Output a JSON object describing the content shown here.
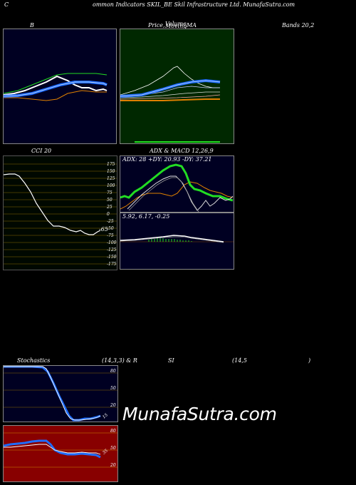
{
  "header": {
    "c_letter": "C",
    "title_rest": "ommon  Indicators SKIL_BE Skil Infrastructure  Ltd. MunafaSutra.com"
  },
  "row1": {
    "b_label": "B",
    "price_label": "Price,",
    "volume_label": "Volume",
    "moving_label": "Moving",
    "ma_label": "MA",
    "bands_label": "Bands 20,2"
  },
  "cci": {
    "title": "CCI 20",
    "value_label": "-65",
    "ticks": [
      "175",
      "150",
      "125",
      "100",
      "75",
      "50",
      "25",
      "0",
      "-25",
      "-50",
      "-75",
      "-100",
      "-125",
      "-150",
      "-175"
    ]
  },
  "adx": {
    "title": "ADX  & MACD 12,26,9",
    "readout": "ADX: 28  +DY: 20.93 -DY: 37.21"
  },
  "macd": {
    "readout": "5.92,  6.17,  -0.25"
  },
  "row3": {
    "stoch_label": "Stochastics",
    "params_label": "(14,3,3) & R",
    "si_label": "SI",
    "rsi_params_label": "(14,5",
    "close_paren": ")"
  },
  "stoch": {
    "ticks": [
      "80",
      "50",
      "20"
    ],
    "value_label": "15"
  },
  "rsi": {
    "ticks": [
      "80",
      "50",
      "20"
    ],
    "value_label": "35"
  },
  "watermark": "MunafaSutra.com",
  "colors": {
    "navy_bg": "#000022",
    "green_bg": "#002800",
    "olive_bg": "#000800",
    "red_bg": "#880000",
    "blue_line": "#1e6cff",
    "green_line": "#22dd22",
    "orange_line": "#e08000"
  },
  "chart_data": [
    {
      "type": "line",
      "panel": "bollinger",
      "series": [
        {
          "values": [
            50,
            48,
            46,
            43,
            40,
            36,
            32,
            28,
            26,
            26,
            30,
            34,
            36,
            38
          ]
        },
        {
          "values": [
            44,
            44,
            43,
            42,
            40,
            38,
            35,
            32,
            30,
            29,
            29,
            29,
            30,
            31
          ]
        },
        {
          "values": [
            36,
            36,
            37,
            38,
            38,
            37,
            36,
            34,
            33,
            32,
            31,
            31,
            31,
            31
          ]
        }
      ]
    },
    {
      "type": "line",
      "panel": "cci",
      "ylim": [
        -175,
        175
      ],
      "series": [
        {
          "values": [
            140,
            142,
            142,
            135,
            110,
            80,
            40,
            10,
            -20,
            -40,
            -45,
            -50,
            -55,
            -60,
            -55,
            -65,
            -68,
            -68,
            -60,
            -65
          ]
        }
      ]
    },
    {
      "type": "line",
      "panel": "adx",
      "series": [
        {
          "name": "ADX",
          "values": [
            10,
            12,
            14,
            18,
            24,
            30,
            38,
            44,
            48,
            46,
            40,
            36,
            34,
            32,
            30,
            30,
            29,
            28
          ]
        },
        {
          "name": "+DY",
          "values": [
            20,
            22,
            24,
            26,
            26,
            27,
            28,
            28,
            26,
            20,
            16,
            14,
            14,
            18,
            22,
            24,
            22,
            20.93
          ]
        },
        {
          "name": "-DY",
          "values": [
            8,
            12,
            16,
            20,
            22,
            22,
            24,
            22,
            18,
            12,
            20,
            28,
            32,
            34,
            36,
            36,
            37,
            37.21
          ]
        }
      ]
    },
    {
      "type": "line",
      "panel": "macd",
      "series": [
        {
          "name": "MACD",
          "values": [
            2,
            2.5,
            3,
            3.5,
            4.5,
            5.5,
            6.5,
            7,
            7.2,
            7,
            6.8,
            6.5,
            6.2,
            5.92
          ]
        },
        {
          "name": "Signal",
          "values": [
            1.5,
            2,
            2.5,
            3,
            3.8,
            4.6,
            5.5,
            6.2,
            6.6,
            6.7,
            6.6,
            6.4,
            6.3,
            6.17
          ]
        }
      ]
    },
    {
      "type": "line",
      "panel": "stochastics",
      "ylim": [
        0,
        100
      ],
      "series": [
        {
          "values": [
            100,
            100,
            100,
            100,
            100,
            98,
            85,
            60,
            30,
            10,
            5,
            8,
            10,
            12,
            14,
            15
          ]
        }
      ]
    },
    {
      "type": "line",
      "panel": "rsi",
      "ylim": [
        0,
        100
      ],
      "series": [
        {
          "values": [
            64,
            65,
            66,
            67,
            68,
            68,
            68,
            55,
            45,
            42,
            40,
            42,
            41,
            40,
            38,
            35
          ]
        }
      ]
    }
  ]
}
